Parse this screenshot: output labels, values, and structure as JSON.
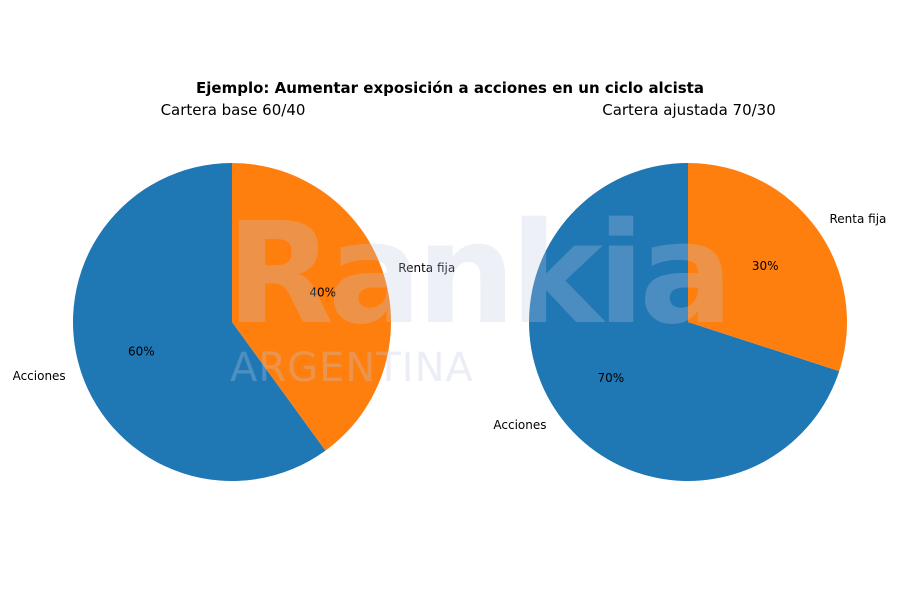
{
  "chart_data": {
    "type": "pie",
    "title": "Ejemplo: Aumentar exposición a acciones en un ciclo alcista",
    "charts": [
      {
        "title": "Cartera base 60/40",
        "labels": [
          "Acciones",
          "Renta fija"
        ],
        "values": [
          60,
          40
        ],
        "pct_labels": [
          "60%",
          "40%"
        ],
        "colors": [
          "#1f77b4",
          "#ff7f0e"
        ]
      },
      {
        "title": "Cartera ajustada 70/30",
        "labels": [
          "Acciones",
          "Renta fija"
        ],
        "values": [
          70,
          30
        ],
        "pct_labels": [
          "70%",
          "30%"
        ],
        "colors": [
          "#1f77b4",
          "#ff7f0e"
        ]
      }
    ]
  },
  "watermark": {
    "brand": "Rankia",
    "region": "ARGENTINA"
  }
}
